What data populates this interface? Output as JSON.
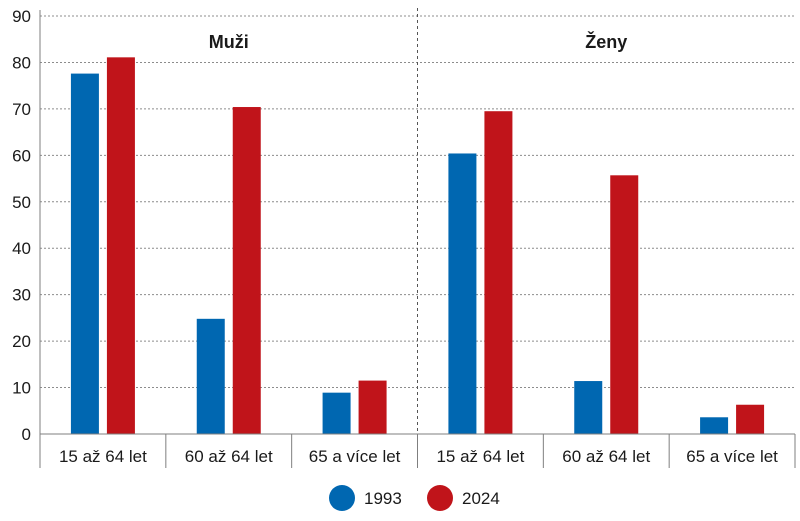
{
  "chart_data": {
    "type": "bar",
    "panels": [
      {
        "title": "Muži",
        "categories": [
          "15 až 64 let",
          "60 až 64 let",
          "65 a více let"
        ],
        "series": [
          {
            "name": "1993",
            "values": [
              77.6,
              24.8,
              8.9
            ]
          },
          {
            "name": "2024",
            "values": [
              81.1,
              70.4,
              11.5
            ]
          }
        ]
      },
      {
        "title": "Ženy",
        "categories": [
          "15 až 64 let",
          "60 až 64 let",
          "65 a více let"
        ],
        "series": [
          {
            "name": "1993",
            "values": [
              60.4,
              11.4,
              3.6
            ]
          },
          {
            "name": "2024",
            "values": [
              69.5,
              55.7,
              6.3
            ]
          }
        ]
      }
    ],
    "ylim": [
      0,
      90
    ],
    "yticks": [
      "0",
      "10",
      "20",
      "30",
      "40",
      "50",
      "60",
      "70",
      "80",
      "90"
    ],
    "grid": true,
    "legend": {
      "position": "bottom-center",
      "entries": [
        "1993",
        "2024"
      ]
    },
    "colors": {
      "1993": "#0067b1",
      "2024": "#c0141a"
    }
  }
}
